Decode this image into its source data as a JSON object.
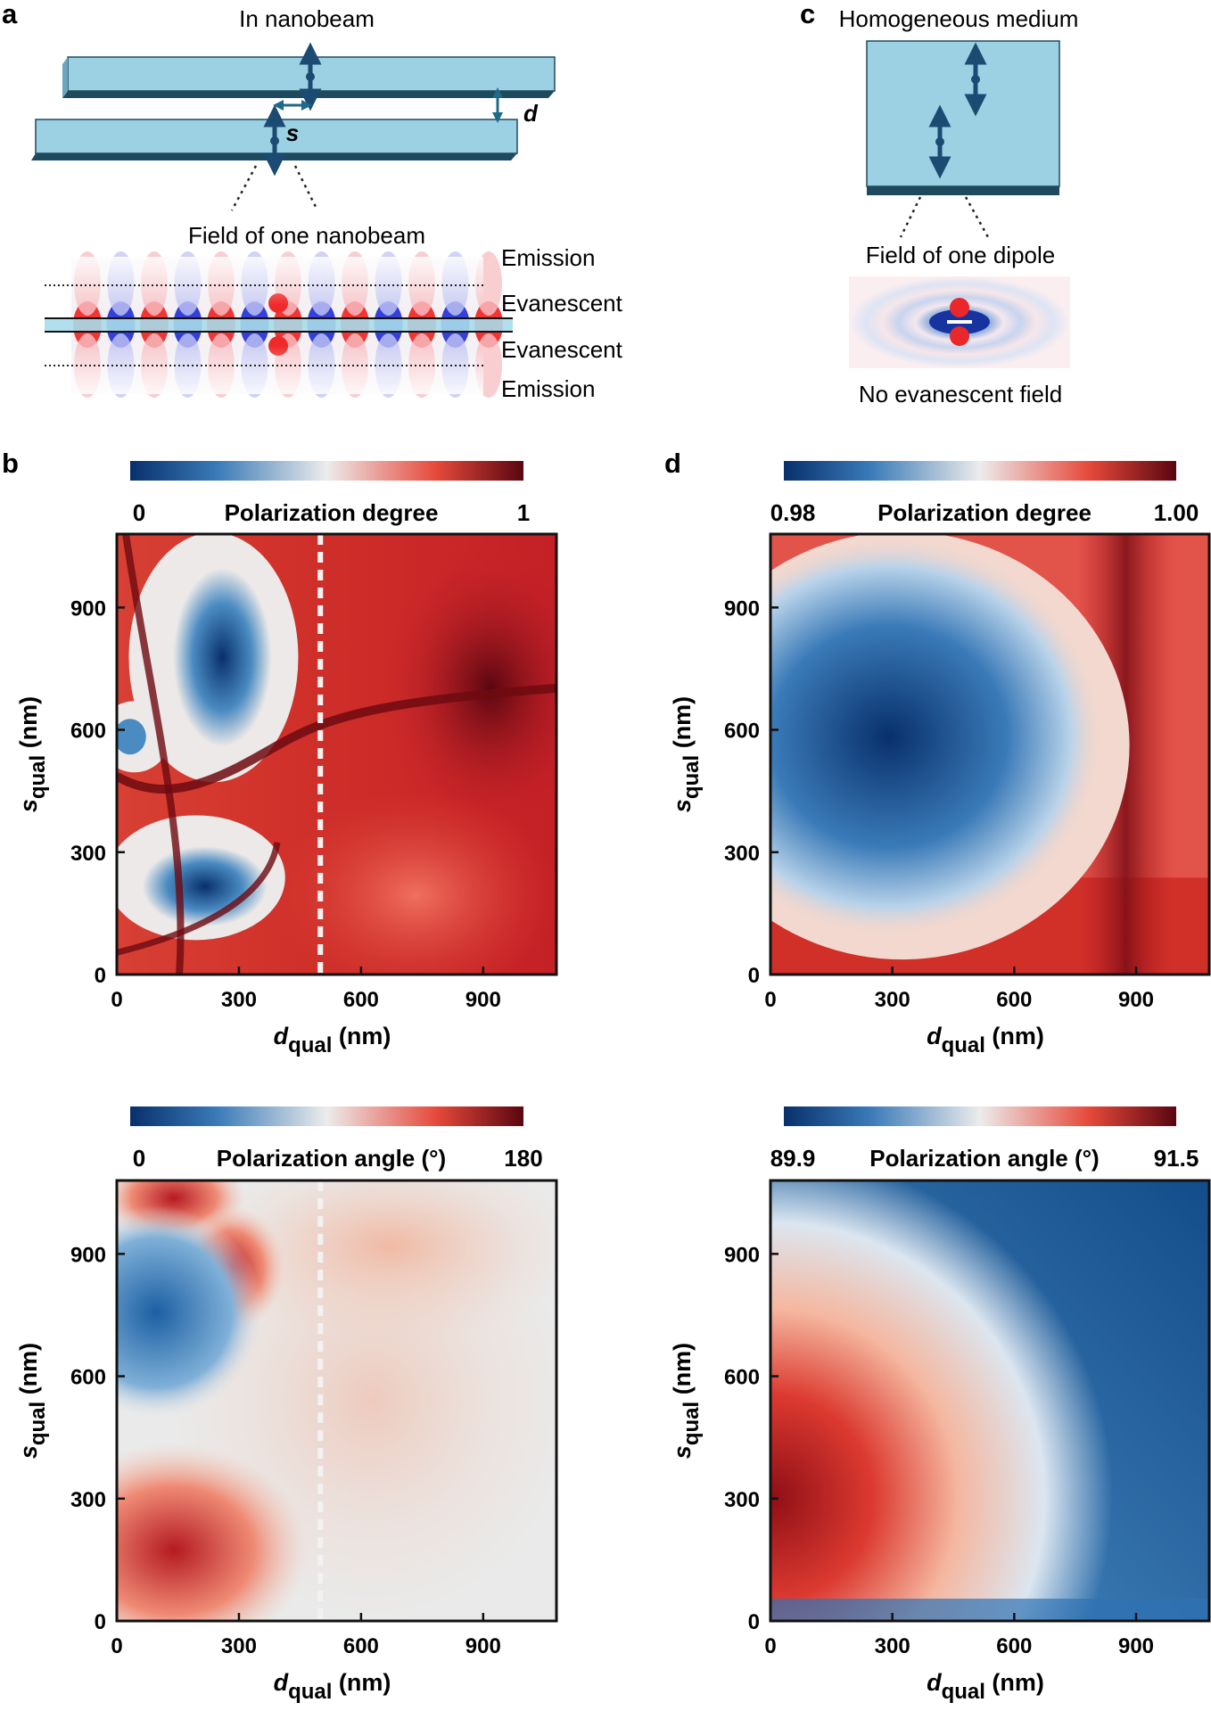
{
  "panel_labels": {
    "a": "a",
    "b": "b",
    "c": "c",
    "d": "d"
  },
  "panel_a": {
    "title": "In nanobeam",
    "s_label": "s",
    "d_label": "d",
    "field_title": "Field of one nanobeam",
    "regions": [
      "Emission",
      "Evanescent",
      "Evanescent",
      "Emission"
    ]
  },
  "panel_c": {
    "title": "Homogeneous medium",
    "field_title": "Field of one dipole",
    "note": "No evanescent field"
  },
  "axes": {
    "x_label_main": "d",
    "x_label_sub": "qual",
    "x_label_unit": " (nm)",
    "y_label_main": "s",
    "y_label_sub": "qual",
    "y_label_unit": " (nm)",
    "ticks": [
      "0",
      "300",
      "600",
      "900"
    ]
  },
  "colorbars": {
    "b_top": {
      "title": "Polarization degree",
      "min": "0",
      "max": "1"
    },
    "b_bottom": {
      "title": "Polarization angle (°)",
      "min": "0",
      "max": "180"
    },
    "d_top": {
      "title": "Polarization degree",
      "min": "0.98",
      "max": "1.00"
    },
    "d_bottom": {
      "title": "Polarization angle (°)",
      "min": "89.9",
      "max": "91.5"
    }
  },
  "colors": {
    "deep_blue": "#0d3f7e",
    "mid_blue": "#4a8bc2",
    "light": "#eaeaea",
    "mid_red": "#e5483a",
    "deep_red": "#6e0a10",
    "beam_fill": "#9cd0e3",
    "beam_edge": "#1e4a5e"
  },
  "chart_data": [
    {
      "type": "heatmap",
      "panel": "b-top",
      "title": "Polarization degree",
      "xlabel": "d_qual (nm)",
      "ylabel": "s_qual (nm)",
      "xlim": [
        0,
        1080
      ],
      "ylim": [
        0,
        1080
      ],
      "x_ticks": [
        0,
        300,
        600,
        900
      ],
      "y_ticks": [
        0,
        300,
        600,
        900
      ],
      "color_range": [
        0,
        1
      ],
      "dashed_line_x": 500
    },
    {
      "type": "heatmap",
      "panel": "b-bottom",
      "title": "Polarization angle (°)",
      "xlabel": "d_qual (nm)",
      "ylabel": "s_qual (nm)",
      "xlim": [
        0,
        1080
      ],
      "ylim": [
        0,
        1080
      ],
      "x_ticks": [
        0,
        300,
        600,
        900
      ],
      "y_ticks": [
        0,
        300,
        600,
        900
      ],
      "color_range": [
        0,
        180
      ],
      "dashed_line_x": 500
    },
    {
      "type": "heatmap",
      "panel": "d-top",
      "title": "Polarization degree",
      "xlabel": "d_qual (nm)",
      "ylabel": "s_qual (nm)",
      "xlim": [
        0,
        1080
      ],
      "ylim": [
        0,
        1080
      ],
      "x_ticks": [
        0,
        300,
        600,
        900
      ],
      "y_ticks": [
        0,
        300,
        600,
        900
      ],
      "color_range": [
        0.98,
        1.0
      ]
    },
    {
      "type": "heatmap",
      "panel": "d-bottom",
      "title": "Polarization angle (°)",
      "xlabel": "d_qual (nm)",
      "ylabel": "s_qual (nm)",
      "xlim": [
        0,
        1080
      ],
      "ylim": [
        0,
        1080
      ],
      "x_ticks": [
        0,
        300,
        600,
        900
      ],
      "y_ticks": [
        0,
        300,
        600,
        900
      ],
      "color_range": [
        89.9,
        91.5
      ]
    }
  ]
}
